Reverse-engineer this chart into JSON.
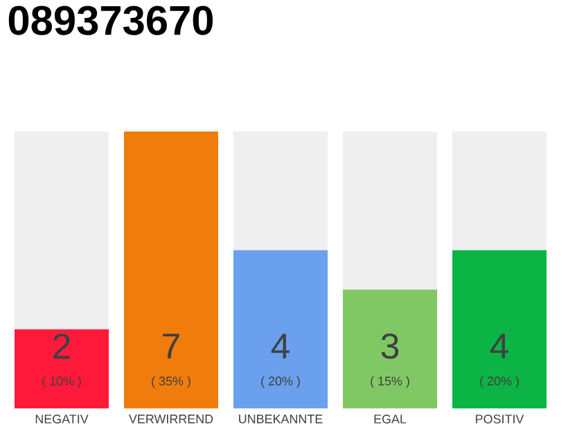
{
  "chart_data": {
    "type": "bar",
    "title": "089373670",
    "categories": [
      "NEGATIV",
      "VERWIRREND",
      "UNBEKANNTE",
      "EGAL",
      "POSITIV"
    ],
    "values": [
      2,
      7,
      4,
      3,
      4
    ],
    "colors": [
      "#ff1a3c",
      "#f07c0c",
      "#6aa0ee",
      "#80c864",
      "#0cb446"
    ],
    "ylim": [
      0,
      7
    ],
    "data_labels": true,
    "annotations": [
      "( 10% )",
      "( 35% )",
      "( 20% )",
      "( 15% )",
      "( 20% )"
    ]
  }
}
